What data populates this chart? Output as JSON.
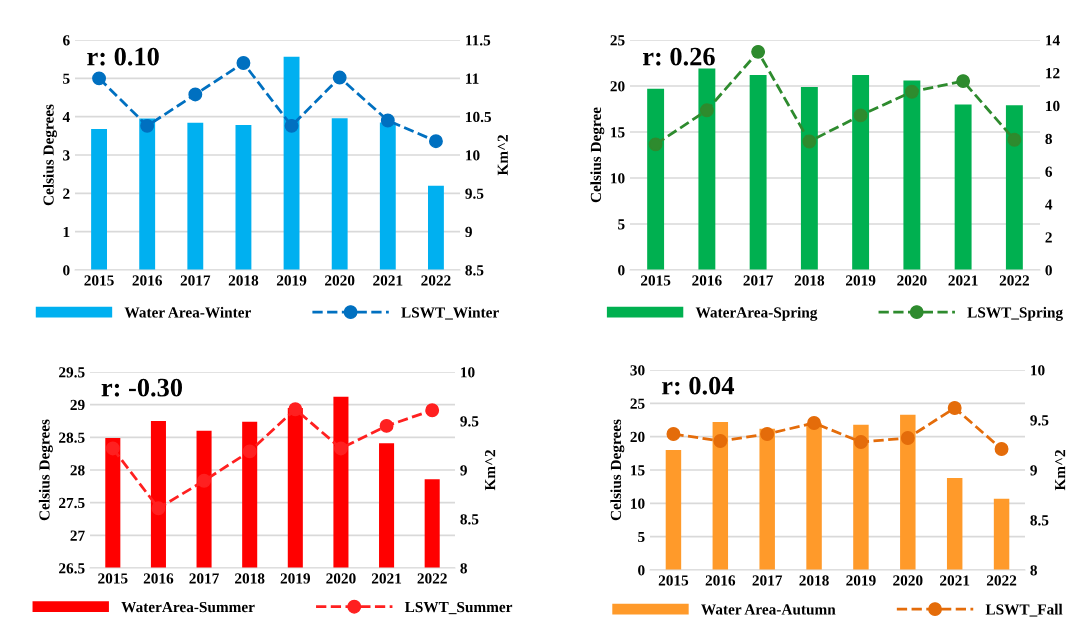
{
  "chart_data": [
    {
      "type": "bar",
      "categories": [
        "2015",
        "2016",
        "2017",
        "2018",
        "2019",
        "2020",
        "2021",
        "2022"
      ],
      "ylabel": "Celsius Degrees",
      "y2label": "Km^2",
      "annotations": [
        "r: 0.10"
      ],
      "ylim": [
        0,
        6
      ],
      "yticks": [
        0,
        1,
        2,
        3,
        4,
        5,
        6
      ],
      "y2lim": [
        8.5,
        11.5
      ],
      "y2ticks": [
        8.5,
        9,
        9.5,
        10,
        10.5,
        11,
        11.5
      ],
      "grid": "y",
      "legend": "bottom",
      "series": [
        {
          "name": "Water Area-Winter",
          "color": "#00b0f0",
          "values": [
            3.68,
            3.95,
            3.84,
            3.78,
            5.56,
            3.96,
            3.85,
            2.2
          ]
        },
        {
          "name": "LSWT_Winter",
          "type": "line",
          "axis": "y2",
          "color": "#0070c0",
          "marker": "circle",
          "line_style": "dashed",
          "values": [
            11.0,
            10.38,
            10.79,
            11.2,
            10.38,
            11.01,
            10.45,
            10.18
          ]
        }
      ]
    },
    {
      "type": "bar",
      "categories": [
        "2015",
        "2016",
        "2017",
        "2018",
        "2019",
        "2020",
        "2021",
        "2022"
      ],
      "ylabel": "Celsius Degree",
      "annotations": [
        "r: 0.26"
      ],
      "ylim": [
        0,
        25
      ],
      "yticks": [
        0,
        5,
        10,
        15,
        20,
        25
      ],
      "y2lim": [
        0,
        14
      ],
      "y2ticks": [
        0,
        2,
        4,
        6,
        8,
        10,
        12,
        14
      ],
      "grid": "y",
      "legend": "bottom",
      "series": [
        {
          "name": "WaterArea-Spring",
          "color": "#00b050",
          "values": [
            19.7,
            21.9,
            21.2,
            19.9,
            21.2,
            20.6,
            18.0,
            17.9
          ]
        },
        {
          "name": "LSWT_Spring",
          "type": "line",
          "axis": "y2",
          "color": "#2e8b2e",
          "marker": "circle",
          "line_style": "dashed",
          "values": [
            7.65,
            9.72,
            13.28,
            7.82,
            9.41,
            10.85,
            11.5,
            7.93
          ]
        }
      ]
    },
    {
      "type": "bar",
      "categories": [
        "2015",
        "2016",
        "2017",
        "2018",
        "2019",
        "2020",
        "2021",
        "2022"
      ],
      "ylabel": "Celsius Degrees",
      "y2label": "Km^2",
      "annotations": [
        "r: -0.30"
      ],
      "ylim": [
        26.5,
        29.5
      ],
      "yticks": [
        26.5,
        27,
        27.5,
        28,
        28.5,
        29,
        29.5
      ],
      "y2lim": [
        8,
        10
      ],
      "y2ticks": [
        8,
        8.5,
        9,
        9.5,
        10
      ],
      "grid": "y",
      "legend": "bottom",
      "series": [
        {
          "name": "WaterArea-Summer",
          "color": "#ff0000",
          "values": [
            28.49,
            28.75,
            28.6,
            28.74,
            28.95,
            29.12,
            28.41,
            27.86
          ]
        },
        {
          "name": "LSWT_Summer",
          "type": "line",
          "axis": "y2",
          "color": "#ff2020",
          "marker": "circle",
          "line_style": "dashed",
          "values": [
            9.22,
            8.61,
            8.89,
            9.19,
            9.62,
            9.22,
            9.45,
            9.61
          ]
        }
      ]
    },
    {
      "type": "bar",
      "categories": [
        "2015",
        "2016",
        "2017",
        "2018",
        "2019",
        "2020",
        "2021",
        "2022"
      ],
      "ylabel": "Celsius Degrees",
      "y2label": "Km^2",
      "annotations": [
        "r: 0.04"
      ],
      "ylim": [
        0,
        30
      ],
      "yticks": [
        0,
        5,
        10,
        15,
        20,
        25,
        30
      ],
      "y2lim": [
        8,
        10
      ],
      "y2ticks": [
        8,
        8.5,
        9,
        9.5,
        10
      ],
      "grid": "y",
      "legend": "bottom",
      "series": [
        {
          "name": "Water Area-Autumn",
          "color": "#ff9a2a",
          "values": [
            18.0,
            22.2,
            21.2,
            22.0,
            21.8,
            23.3,
            13.8,
            10.7
          ]
        },
        {
          "name": "LSWT_Fall",
          "type": "line",
          "axis": "y2",
          "color": "#e46c0a",
          "marker": "circle",
          "line_style": "dashed",
          "values": [
            9.36,
            9.29,
            9.36,
            9.47,
            9.28,
            9.32,
            9.62,
            9.21
          ]
        }
      ]
    }
  ]
}
